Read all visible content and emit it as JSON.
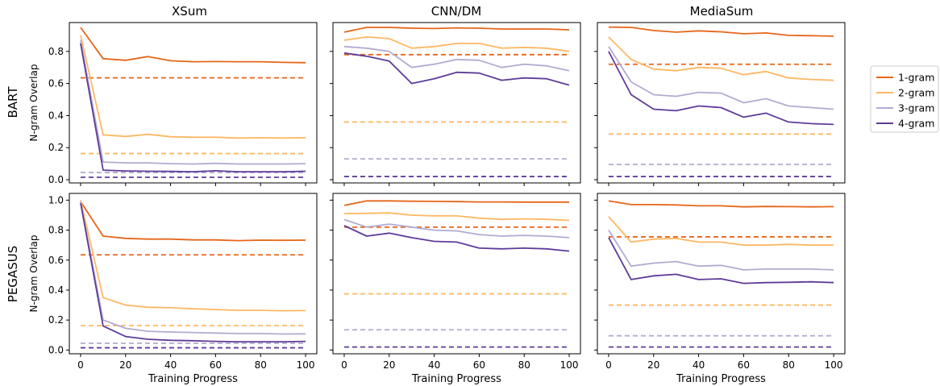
{
  "figure": {
    "columns": [
      "XSum",
      "CNN/DM",
      "MediaSum"
    ],
    "rows": [
      "BART",
      "PEGASUS"
    ],
    "ylabel": "N-gram Overlap",
    "xlabel": "Training Progress",
    "legend_placement": "right"
  },
  "colors": {
    "1-gram": "#e6661a",
    "2-gram": "#fdb863",
    "3-gram": "#b2abd2",
    "4-gram": "#5e3c99"
  },
  "chart_data": [
    {
      "type": "line",
      "row": "BART",
      "column": "XSum",
      "x": [
        0,
        10,
        20,
        30,
        40,
        50,
        60,
        70,
        80,
        90,
        100
      ],
      "ylim": [
        -0.02,
        0.98
      ],
      "yticks": [
        0.0,
        0.2,
        0.4,
        0.6,
        0.8
      ],
      "xticks": [
        0,
        20,
        40,
        60,
        80,
        100
      ],
      "show_yticklabels": true,
      "show_xticklabels": false,
      "show_ylabel": true,
      "series": [
        {
          "name": "1-gram",
          "values": [
            0.95,
            0.755,
            0.745,
            0.768,
            0.742,
            0.736,
            0.737,
            0.736,
            0.736,
            0.732,
            0.73
          ]
        },
        {
          "name": "2-gram",
          "values": [
            0.9,
            0.28,
            0.27,
            0.283,
            0.268,
            0.265,
            0.265,
            0.26,
            0.262,
            0.26,
            0.262
          ]
        },
        {
          "name": "3-gram",
          "values": [
            0.87,
            0.11,
            0.105,
            0.105,
            0.1,
            0.098,
            0.102,
            0.098,
            0.098,
            0.098,
            0.1
          ]
        },
        {
          "name": "4-gram",
          "values": [
            0.85,
            0.06,
            0.055,
            0.053,
            0.052,
            0.05,
            0.056,
            0.05,
            0.05,
            0.05,
            0.053
          ]
        }
      ],
      "baselines": [
        {
          "series": "1-gram",
          "value": 0.635
        },
        {
          "series": "2-gram",
          "value": 0.163
        },
        {
          "series": "3-gram",
          "value": 0.045
        },
        {
          "series": "4-gram",
          "value": 0.015
        }
      ]
    },
    {
      "type": "line",
      "row": "BART",
      "column": "CNN/DM",
      "x": [
        0,
        10,
        20,
        30,
        40,
        50,
        60,
        70,
        80,
        90,
        100
      ],
      "ylim": [
        -0.02,
        0.98
      ],
      "yticks": [
        0.0,
        0.2,
        0.4,
        0.6,
        0.8
      ],
      "xticks": [
        0,
        20,
        40,
        60,
        80,
        100
      ],
      "show_yticklabels": false,
      "show_xticklabels": false,
      "show_ylabel": false,
      "series": [
        {
          "name": "1-gram",
          "values": [
            0.92,
            0.95,
            0.95,
            0.945,
            0.943,
            0.947,
            0.945,
            0.94,
            0.94,
            0.94,
            0.935
          ]
        },
        {
          "name": "2-gram",
          "values": [
            0.87,
            0.89,
            0.88,
            0.82,
            0.83,
            0.85,
            0.85,
            0.82,
            0.825,
            0.82,
            0.8
          ]
        },
        {
          "name": "3-gram",
          "values": [
            0.83,
            0.82,
            0.8,
            0.7,
            0.72,
            0.75,
            0.745,
            0.7,
            0.72,
            0.71,
            0.68
          ]
        },
        {
          "name": "4-gram",
          "values": [
            0.79,
            0.77,
            0.74,
            0.6,
            0.63,
            0.67,
            0.665,
            0.62,
            0.635,
            0.63,
            0.59
          ]
        }
      ],
      "baselines": [
        {
          "series": "1-gram",
          "value": 0.78
        },
        {
          "series": "2-gram",
          "value": 0.36
        },
        {
          "series": "3-gram",
          "value": 0.13
        },
        {
          "series": "4-gram",
          "value": 0.02
        }
      ]
    },
    {
      "type": "line",
      "row": "BART",
      "column": "MediaSum",
      "x": [
        0,
        10,
        20,
        30,
        40,
        50,
        60,
        70,
        80,
        90,
        100
      ],
      "ylim": [
        -0.02,
        0.98
      ],
      "yticks": [
        0.0,
        0.2,
        0.4,
        0.6,
        0.8
      ],
      "xticks": [
        0,
        20,
        40,
        60,
        80,
        100
      ],
      "show_yticklabels": false,
      "show_xticklabels": false,
      "show_ylabel": false,
      "series": [
        {
          "name": "1-gram",
          "values": [
            0.952,
            0.95,
            0.93,
            0.92,
            0.928,
            0.922,
            0.91,
            0.915,
            0.9,
            0.898,
            0.895
          ]
        },
        {
          "name": "2-gram",
          "values": [
            0.89,
            0.75,
            0.69,
            0.68,
            0.7,
            0.695,
            0.655,
            0.675,
            0.635,
            0.625,
            0.62
          ]
        },
        {
          "name": "3-gram",
          "values": [
            0.83,
            0.61,
            0.53,
            0.52,
            0.545,
            0.54,
            0.48,
            0.505,
            0.46,
            0.45,
            0.44
          ]
        },
        {
          "name": "4-gram",
          "values": [
            0.8,
            0.53,
            0.44,
            0.43,
            0.46,
            0.45,
            0.39,
            0.415,
            0.36,
            0.35,
            0.345
          ]
        }
      ],
      "baselines": [
        {
          "series": "1-gram",
          "value": 0.72
        },
        {
          "series": "2-gram",
          "value": 0.285
        },
        {
          "series": "3-gram",
          "value": 0.095
        },
        {
          "series": "4-gram",
          "value": 0.02
        }
      ]
    },
    {
      "type": "line",
      "row": "PEGASUS",
      "column": "XSum",
      "x": [
        0,
        10,
        20,
        30,
        40,
        50,
        60,
        70,
        80,
        90,
        100
      ],
      "ylim": [
        -0.025,
        1.045
      ],
      "yticks": [
        0.0,
        0.2,
        0.4,
        0.6,
        0.8,
        1.0
      ],
      "xticks": [
        0,
        20,
        40,
        60,
        80,
        100
      ],
      "show_yticklabels": true,
      "show_xticklabels": true,
      "show_ylabel": true,
      "series": [
        {
          "name": "1-gram",
          "values": [
            0.99,
            0.76,
            0.745,
            0.74,
            0.74,
            0.735,
            0.735,
            0.73,
            0.733,
            0.732,
            0.733
          ]
        },
        {
          "name": "2-gram",
          "values": [
            1.0,
            0.35,
            0.3,
            0.285,
            0.282,
            0.275,
            0.27,
            0.265,
            0.265,
            0.262,
            0.263
          ]
        },
        {
          "name": "3-gram",
          "values": [
            0.99,
            0.2,
            0.145,
            0.125,
            0.12,
            0.117,
            0.113,
            0.11,
            0.11,
            0.107,
            0.108
          ]
        },
        {
          "name": "4-gram",
          "values": [
            0.98,
            0.16,
            0.09,
            0.072,
            0.065,
            0.062,
            0.058,
            0.055,
            0.055,
            0.055,
            0.058
          ]
        }
      ],
      "baselines": [
        {
          "series": "1-gram",
          "value": 0.635
        },
        {
          "series": "2-gram",
          "value": 0.163
        },
        {
          "series": "3-gram",
          "value": 0.045
        },
        {
          "series": "4-gram",
          "value": 0.015
        }
      ]
    },
    {
      "type": "line",
      "row": "PEGASUS",
      "column": "CNN/DM",
      "x": [
        0,
        10,
        20,
        30,
        40,
        50,
        60,
        70,
        80,
        90,
        100
      ],
      "ylim": [
        -0.025,
        1.045
      ],
      "yticks": [
        0.0,
        0.2,
        0.4,
        0.6,
        0.8,
        1.0
      ],
      "xticks": [
        0,
        20,
        40,
        60,
        80,
        100
      ],
      "show_yticklabels": false,
      "show_xticklabels": true,
      "show_ylabel": false,
      "series": [
        {
          "name": "1-gram",
          "values": [
            0.965,
            0.995,
            0.995,
            0.993,
            0.992,
            0.99,
            0.988,
            0.988,
            0.987,
            0.987,
            0.987
          ]
        },
        {
          "name": "2-gram",
          "values": [
            0.91,
            0.912,
            0.915,
            0.9,
            0.895,
            0.895,
            0.88,
            0.872,
            0.875,
            0.872,
            0.865
          ]
        },
        {
          "name": "3-gram",
          "values": [
            0.87,
            0.82,
            0.84,
            0.82,
            0.8,
            0.795,
            0.77,
            0.76,
            0.765,
            0.76,
            0.75
          ]
        },
        {
          "name": "4-gram",
          "values": [
            0.83,
            0.76,
            0.78,
            0.75,
            0.725,
            0.72,
            0.68,
            0.675,
            0.68,
            0.675,
            0.66
          ]
        }
      ],
      "baselines": [
        {
          "series": "1-gram",
          "value": 0.82
        },
        {
          "series": "2-gram",
          "value": 0.375
        },
        {
          "series": "3-gram",
          "value": 0.135
        },
        {
          "series": "4-gram",
          "value": 0.02
        }
      ]
    },
    {
      "type": "line",
      "row": "PEGASUS",
      "column": "MediaSum",
      "x": [
        0,
        10,
        20,
        30,
        40,
        50,
        60,
        70,
        80,
        90,
        100
      ],
      "ylim": [
        -0.025,
        1.045
      ],
      "yticks": [
        0.0,
        0.2,
        0.4,
        0.6,
        0.8,
        1.0
      ],
      "xticks": [
        0,
        20,
        40,
        60,
        80,
        100
      ],
      "show_yticklabels": false,
      "show_xticklabels": true,
      "show_ylabel": false,
      "series": [
        {
          "name": "1-gram",
          "values": [
            0.995,
            0.97,
            0.97,
            0.968,
            0.962,
            0.962,
            0.955,
            0.958,
            0.957,
            0.955,
            0.957
          ]
        },
        {
          "name": "2-gram",
          "values": [
            0.89,
            0.72,
            0.74,
            0.745,
            0.72,
            0.72,
            0.7,
            0.7,
            0.705,
            0.7,
            0.7
          ]
        },
        {
          "name": "3-gram",
          "values": [
            0.8,
            0.56,
            0.58,
            0.59,
            0.56,
            0.565,
            0.535,
            0.54,
            0.54,
            0.54,
            0.535
          ]
        },
        {
          "name": "4-gram",
          "values": [
            0.75,
            0.47,
            0.495,
            0.505,
            0.47,
            0.475,
            0.445,
            0.45,
            0.452,
            0.455,
            0.45
          ]
        }
      ],
      "baselines": [
        {
          "series": "1-gram",
          "value": 0.755
        },
        {
          "series": "2-gram",
          "value": 0.3
        },
        {
          "series": "3-gram",
          "value": 0.095
        },
        {
          "series": "4-gram",
          "value": 0.02
        }
      ]
    }
  ]
}
